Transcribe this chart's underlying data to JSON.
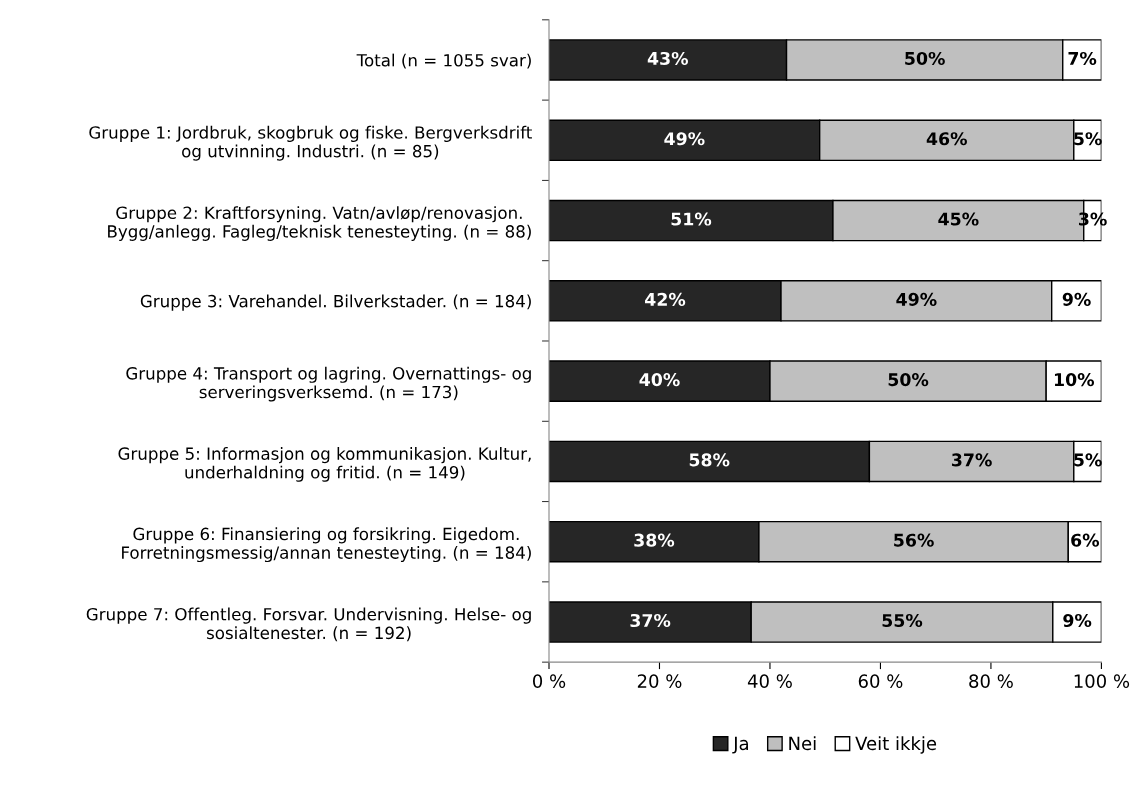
{
  "chart_data": {
    "type": "bar",
    "orientation": "horizontal",
    "stacked": true,
    "categories": [
      "Total (n = 1055 svar)",
      "Gruppe 1: Jordbruk, skogbruk og fiske. Bergverksdrift\nog utvinning. Industri. (n = 85)",
      "Gruppe 2: Kraftforsyning. Vatn/avløp/renovasjon.\nBygg/anlegg. Fagleg/teknisk tenesteyting. (n = 88)",
      "Gruppe 3: Varehandel. Bilverkstader. (n = 184)",
      "Gruppe 4: Transport og lagring. Overnattings- og\nserveringsverksemd. (n = 173)",
      "Gruppe 5: Informasjon og kommunikasjon. Kultur,\nunderhaldning og fritid. (n = 149)",
      "Gruppe 6: Finansiering og forsikring. Eigedom.\nForretningsmessig/annan tenesteyting. (n = 184)",
      "Gruppe 7: Offentleg. Forsvar. Undervisning. Helse- og\nsosialtenester. (n = 192)"
    ],
    "series": [
      {
        "name": "Ja",
        "color": "#262626",
        "values": [
          43,
          49,
          51.4,
          42,
          40,
          58,
          38,
          36.6
        ],
        "value_labels": [
          "43%",
          "49%",
          "51%",
          "42%",
          "40%",
          "58%",
          "38%",
          "37%"
        ]
      },
      {
        "name": "Nei",
        "color": "#bfbfbf",
        "values": [
          50,
          46,
          45.4,
          49,
          50,
          37,
          56,
          54.6
        ],
        "value_labels": [
          "50%",
          "46%",
          "45%",
          "49%",
          "50%",
          "37%",
          "56%",
          "55%"
        ]
      },
      {
        "name": "Veit ikkje",
        "color": "#ffffff",
        "values": [
          7,
          5,
          3.2,
          9,
          10,
          5,
          6,
          8.8
        ],
        "value_labels": [
          "7%",
          "5%",
          "3%",
          "9%",
          "10%",
          "5%",
          "6%",
          "9%"
        ]
      }
    ],
    "xlim": [
      0,
      100
    ],
    "xticks": [
      {
        "value": 0,
        "label": "0 %"
      },
      {
        "value": 20,
        "label": "20 %"
      },
      {
        "value": 40,
        "label": "40 %"
      },
      {
        "value": 60,
        "label": "60 %"
      },
      {
        "value": 80,
        "label": "80 %"
      },
      {
        "value": 100,
        "label": "100 %"
      }
    ],
    "grid": false,
    "legend": "bottom"
  }
}
